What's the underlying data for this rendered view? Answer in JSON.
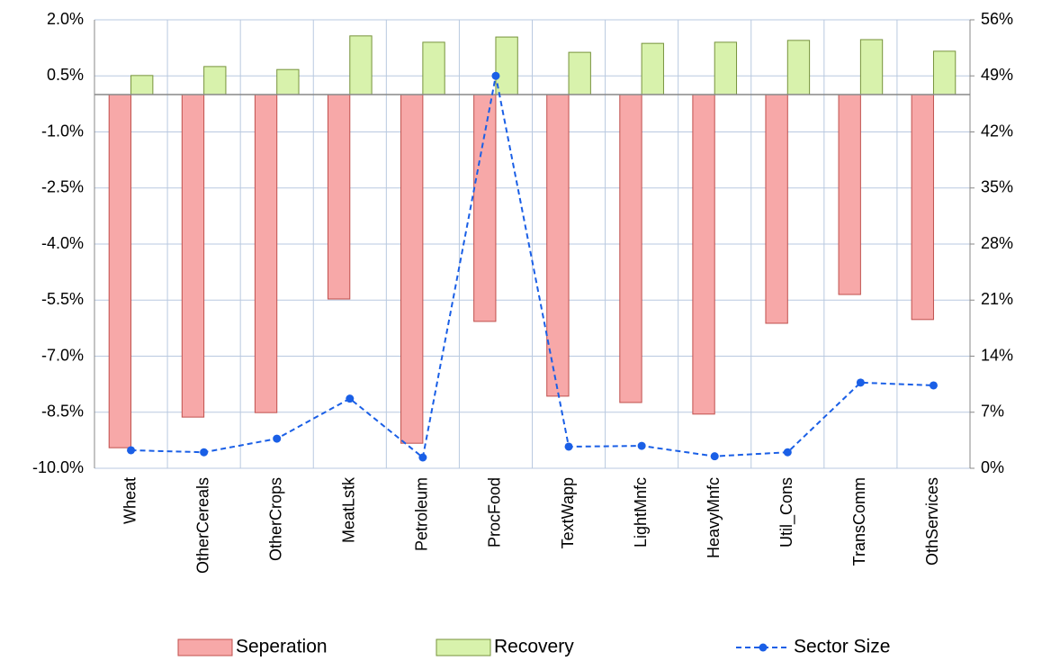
{
  "chart_data": {
    "type": "bar_line",
    "categories": [
      "Wheat",
      "OtherCereals",
      "OtherCrops",
      "MeatLstk",
      "Petroleum",
      "ProcFood",
      "TextWapp",
      "LightMnfc",
      "HeavyMnfc",
      "Util_Cons",
      "TransComm",
      "OthServices"
    ],
    "series": [
      {
        "name": "Seperation",
        "type": "bar",
        "color": "#f7a8a8",
        "values": [
          -9.45,
          -8.63,
          -8.51,
          -5.47,
          -9.33,
          -6.07,
          -8.07,
          -8.24,
          -8.55,
          -6.12,
          -5.35,
          -6.02
        ]
      },
      {
        "name": "Recovery",
        "type": "bar",
        "color": "#d8f2ac",
        "values": [
          0.51,
          0.75,
          0.67,
          1.57,
          1.4,
          1.54,
          1.13,
          1.37,
          1.4,
          1.45,
          1.47,
          1.16
        ]
      },
      {
        "name": "Sector Size",
        "type": "line",
        "axis": "y2",
        "color": "#1a5fe6",
        "values": [
          2.25,
          2.0,
          3.7,
          8.7,
          1.35,
          49.0,
          2.7,
          2.8,
          1.5,
          2.0,
          10.7,
          10.35
        ]
      }
    ],
    "ylim": [
      -10,
      2
    ],
    "yticks": [
      {
        "value": -10,
        "label": "-10.0%"
      },
      {
        "value": -8.5,
        "label": "-8.5%"
      },
      {
        "value": -7,
        "label": "-7.0%"
      },
      {
        "value": -5.5,
        "label": "-5.5%"
      },
      {
        "value": -4,
        "label": "-4.0%"
      },
      {
        "value": -2.5,
        "label": "-2.5%"
      },
      {
        "value": -1,
        "label": "-1.0%"
      },
      {
        "value": 0.5,
        "label": "0.5%"
      },
      {
        "value": 2,
        "label": "2.0%"
      }
    ],
    "y2lim": [
      0,
      56
    ],
    "y2ticks": [
      {
        "value": 0,
        "label": "0%"
      },
      {
        "value": 7,
        "label": "7%"
      },
      {
        "value": 14,
        "label": "14%"
      },
      {
        "value": 21,
        "label": "21%"
      },
      {
        "value": 28,
        "label": "28%"
      },
      {
        "value": 35,
        "label": "35%"
      },
      {
        "value": 42,
        "label": "42%"
      },
      {
        "value": 49,
        "label": "49%"
      },
      {
        "value": 56,
        "label": "56%"
      }
    ],
    "grid": true,
    "legend": "bottom"
  }
}
